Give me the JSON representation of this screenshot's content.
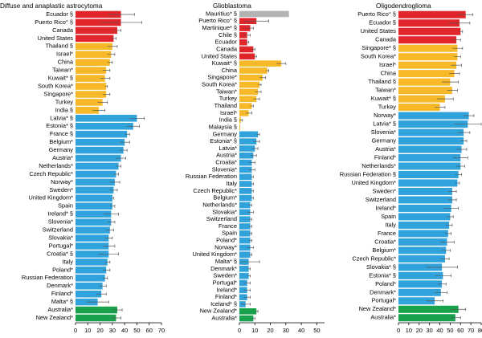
{
  "colors": {
    "red": "#e0252b",
    "yellow": "#f7b928",
    "blue": "#30a2dc",
    "green": "#18a24b",
    "grey": "#b3b3b3",
    "axis": "#000000",
    "error": "#555555"
  },
  "chart_data": [
    {
      "type": "bar",
      "orientation": "horizontal",
      "title": "Diffuse and anaplastic astrocytoma",
      "xlim": [
        0,
        70
      ],
      "xticks": [
        0,
        10,
        20,
        30,
        40,
        50,
        60,
        70
      ],
      "xtick_labels": [
        "0",
        "10",
        "20",
        "30",
        "40",
        "50",
        "60",
        "70"
      ],
      "categories": [
        "Ecuador §",
        "Puerto Rico° §",
        "Canada",
        "United States",
        "Thailand §",
        "Israel*",
        "China",
        "Taiwan*",
        "Kuwait* §",
        "South Korea*",
        "Singapore*",
        "Turkey",
        "India §",
        "Latvia* §",
        "Estonia* §",
        "France §",
        "Belgium*",
        "Germany",
        "Austria*",
        "Netherlands*",
        "Czech Republic*",
        "Norway*",
        "Sweden*",
        "United Kingdom*",
        "Spain",
        "Ireland* §",
        "Slovenia*",
        "Switzerland",
        "Slovakia*",
        "Portugal*",
        "Croatia* §",
        "Italy",
        "Poland*",
        "Russian Federation",
        "Denmark*",
        "Finland*",
        "Malta* §",
        "Australia*",
        "New Zealand*"
      ],
      "values": [
        37,
        37,
        34,
        31,
        30,
        29,
        28,
        25,
        24,
        25,
        25,
        22,
        19,
        50,
        47,
        42,
        40,
        39,
        37,
        35,
        33,
        32,
        31,
        30,
        30,
        29,
        29,
        28,
        27,
        27,
        27,
        26,
        25,
        24,
        22,
        21,
        18,
        34,
        33
      ],
      "errors": [
        11,
        17,
        3,
        2,
        4,
        3,
        2,
        3,
        4,
        1,
        3,
        4,
        5,
        6,
        5,
        2,
        4,
        3,
        4,
        2,
        2,
        4,
        3,
        1,
        2,
        6,
        3,
        3,
        3,
        5,
        8,
        2,
        3,
        2,
        3,
        4,
        9,
        4,
        4
      ],
      "colors": [
        "red",
        "red",
        "red",
        "red",
        "yellow",
        "yellow",
        "yellow",
        "yellow",
        "yellow",
        "yellow",
        "yellow",
        "yellow",
        "yellow",
        "blue",
        "blue",
        "blue",
        "blue",
        "blue",
        "blue",
        "blue",
        "blue",
        "blue",
        "blue",
        "blue",
        "blue",
        "blue",
        "blue",
        "blue",
        "blue",
        "blue",
        "blue",
        "blue",
        "blue",
        "blue",
        "blue",
        "blue",
        "blue",
        "green",
        "green"
      ]
    },
    {
      "type": "bar",
      "orientation": "horizontal",
      "title": "Glioblastoma",
      "xlim": [
        0,
        55
      ],
      "xticks": [
        0,
        10,
        20,
        30,
        40,
        50
      ],
      "xtick_labels": [
        "0",
        "10",
        "20",
        "30",
        "40",
        "50"
      ],
      "categories": [
        "Mauritius* §",
        "Puerto Rico° §",
        "Martinique* §",
        "Chile §",
        "Ecuador",
        "Canada",
        "United States",
        "Kuwait* §",
        "China",
        "Singapore*",
        "South Korea*",
        "Taiwan*",
        "Turkey",
        "Thailand",
        "Israel*",
        "India §",
        "Malaysia §",
        "Germany",
        "Estonia* §",
        "Latvia*",
        "Austria*",
        "Croatia*",
        "Slovenia*",
        "Russian Federation",
        "Italy",
        "Czech Republic*",
        "Belgium*",
        "Netherlands*",
        "Slovakia*",
        "Switzerland",
        "France",
        "Spain",
        "Poland*",
        "Norway*",
        "United Kingdom*",
        "Malta* §",
        "Denmark*",
        "Sweden*",
        "Portugal*",
        "Ireland*",
        "Finland*",
        "Iceland* §",
        "New Zealand*",
        "Australia*"
      ],
      "values": [
        32,
        11,
        7,
        5,
        5,
        9,
        10,
        27,
        18,
        15,
        13,
        12,
        11,
        8,
        6,
        1,
        0.5,
        12,
        11,
        10,
        9,
        8,
        8,
        8,
        8,
        8,
        8,
        7,
        7,
        7,
        7,
        7,
        7,
        7,
        7,
        6,
        6,
        6,
        5,
        5,
        5,
        4,
        11,
        9
      ],
      "errors": [
        0,
        8,
        2,
        2,
        1,
        1,
        1,
        3,
        1,
        2,
        1,
        2,
        2,
        1,
        2,
        1,
        0,
        1,
        2,
        2,
        2,
        2,
        2,
        1,
        1,
        1,
        1,
        1,
        2,
        1,
        1,
        1,
        1,
        2,
        1,
        7,
        1,
        1,
        2,
        2,
        2,
        3,
        1,
        1
      ],
      "colors": [
        "grey",
        "red",
        "red",
        "red",
        "red",
        "red",
        "red",
        "yellow",
        "yellow",
        "yellow",
        "yellow",
        "yellow",
        "yellow",
        "yellow",
        "yellow",
        "yellow",
        "yellow",
        "blue",
        "blue",
        "blue",
        "blue",
        "blue",
        "blue",
        "blue",
        "blue",
        "blue",
        "blue",
        "blue",
        "blue",
        "blue",
        "blue",
        "blue",
        "blue",
        "blue",
        "blue",
        "blue",
        "blue",
        "blue",
        "blue",
        "blue",
        "blue",
        "blue",
        "green",
        "green"
      ]
    },
    {
      "type": "bar",
      "orientation": "horizontal",
      "title": "Oligodendroglioma",
      "xlim": [
        0,
        80
      ],
      "xticks": [
        0,
        10,
        20,
        30,
        40,
        50,
        60,
        70,
        80
      ],
      "xtick_labels": [
        "0",
        "10",
        "20",
        "30",
        "40",
        "50",
        "60",
        "70",
        "80"
      ],
      "categories": [
        "Puerto Rico° §",
        "Ecuador §",
        "United States",
        "Canada",
        "Singapore* §",
        "South Korea*",
        "Israel*",
        "China",
        "Thailand §",
        "Taiwan*",
        "Kuwait* §",
        "Turkey",
        "Norway*",
        "Latvia* §",
        "Slovenia*",
        "Germany",
        "Austria*",
        "Finland*",
        "Netherlands*",
        "Russian Federation §",
        "United Kingdom*",
        "Sweden*",
        "Switzerland",
        "Ireland*",
        "Spain",
        "Italy",
        "France",
        "Croatia*",
        "Belgium*",
        "Czech Republic*",
        "Slovakia* §",
        "Estonia* §",
        "Poland*",
        "Denmark*",
        "Portugal*",
        "New Zealand*",
        "Australia*"
      ],
      "values": [
        65,
        59,
        60,
        56,
        57,
        57,
        56,
        54,
        50,
        52,
        45,
        40,
        68,
        67,
        63,
        63,
        61,
        60,
        60,
        58,
        57,
        52,
        52,
        51,
        50,
        49,
        48,
        47,
        46,
        45,
        42,
        43,
        42,
        41,
        35,
        58,
        55
      ],
      "errors": [
        7,
        10,
        2,
        4,
        5,
        3,
        5,
        5,
        8,
        5,
        8,
        5,
        5,
        13,
        6,
        3,
        5,
        7,
        4,
        3,
        2,
        4,
        4,
        7,
        3,
        3,
        3,
        7,
        4,
        4,
        15,
        8,
        4,
        6,
        8,
        7,
        5
      ],
      "colors": [
        "red",
        "red",
        "red",
        "red",
        "yellow",
        "yellow",
        "yellow",
        "yellow",
        "yellow",
        "yellow",
        "yellow",
        "yellow",
        "blue",
        "blue",
        "blue",
        "blue",
        "blue",
        "blue",
        "blue",
        "blue",
        "blue",
        "blue",
        "blue",
        "blue",
        "blue",
        "blue",
        "blue",
        "blue",
        "blue",
        "blue",
        "blue",
        "blue",
        "blue",
        "blue",
        "blue",
        "green",
        "green"
      ]
    }
  ]
}
